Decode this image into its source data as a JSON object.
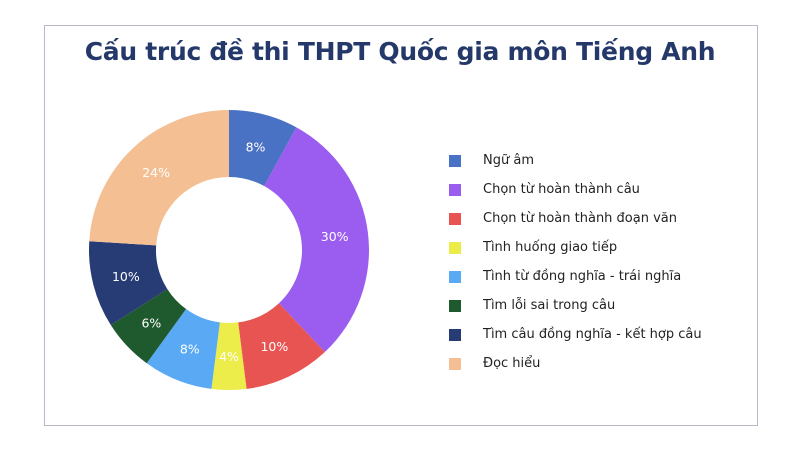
{
  "title": "Cấu trúc đề thi THPT Quốc gia môn Tiếng Anh",
  "chart_data": {
    "type": "pie",
    "subtype": "donut",
    "title": "Cấu trúc đề thi THPT Quốc gia môn Tiếng Anh",
    "categories": [
      "Ngữ âm",
      "Chọn từ hoàn thành câu",
      "Chọn từ hoàn thành đoạn văn",
      "Tình huống giao tiếp",
      "Tình từ đồng nghĩa - trái nghĩa",
      "Tìm lỗi sai trong câu",
      "Tìm câu đồng nghĩa - kết hợp câu",
      "Đọc hiểu"
    ],
    "values": [
      8,
      30,
      10,
      4,
      8,
      6,
      10,
      24
    ],
    "labels": [
      "8%",
      "30%",
      "10%",
      "4%",
      "8%",
      "6%",
      "10%",
      "24%"
    ],
    "colors": [
      "#4a72c4",
      "#9b5cf0",
      "#e85452",
      "#ecec4a",
      "#5aa9f5",
      "#1f5a2e",
      "#273b74",
      "#f3bf93"
    ],
    "unit": "%",
    "start_angle_deg": 0,
    "direction": "clockwise",
    "legend_position": "right"
  },
  "legend": {
    "items": [
      {
        "label": "Ngữ âm",
        "color": "#4a72c4"
      },
      {
        "label": "Chọn từ hoàn thành câu",
        "color": "#9b5cf0"
      },
      {
        "label": "Chọn từ hoàn thành đoạn văn",
        "color": "#e85452"
      },
      {
        "label": "Tình huống giao tiếp",
        "color": "#ecec4a"
      },
      {
        "label": "Tình từ đồng nghĩa - trái nghĩa",
        "color": "#5aa9f5"
      },
      {
        "label": "Tìm lỗi sai trong câu",
        "color": "#1f5a2e"
      },
      {
        "label": "Tìm câu đồng nghĩa - kết hợp câu",
        "color": "#273b74"
      },
      {
        "label": "Đọc hiểu",
        "color": "#f3bf93"
      }
    ]
  }
}
